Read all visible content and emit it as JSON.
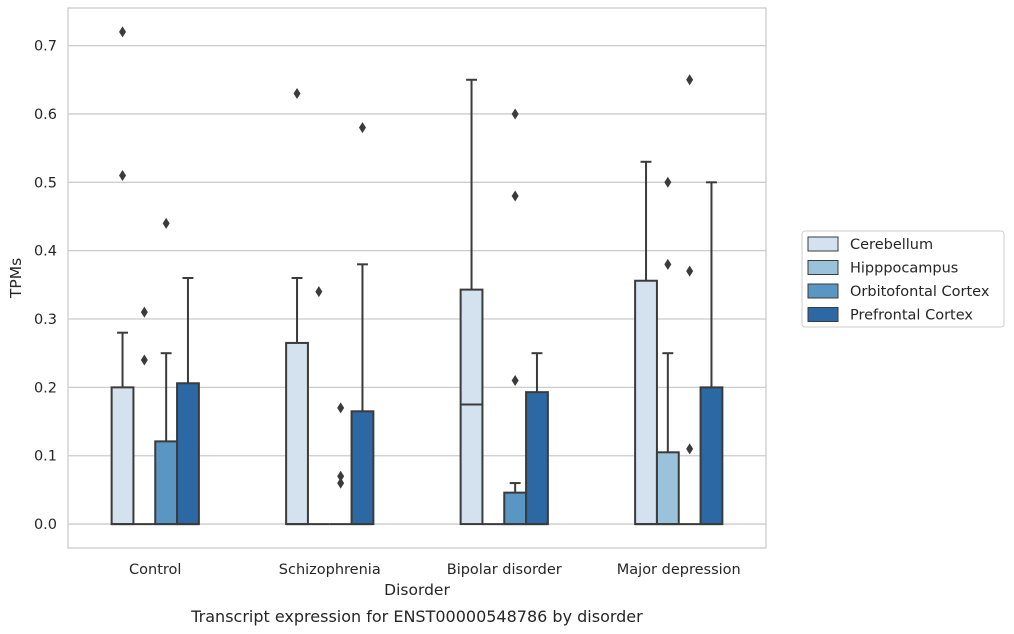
{
  "chart_data": {
    "type": "boxplot",
    "caption": "Transcript expression for ENST00000548786 by disorder",
    "xlabel": "Disorder",
    "ylabel": "TPMs",
    "ylim": [
      -0.035,
      0.755
    ],
    "yticks": [
      0.0,
      0.1,
      0.2,
      0.3,
      0.4,
      0.5,
      0.6,
      0.7
    ],
    "ytick_labels": [
      "0.0",
      "0.1",
      "0.2",
      "0.3",
      "0.4",
      "0.5",
      "0.6",
      "0.7"
    ],
    "grid": "horizontal",
    "legend_position": "right",
    "categories": [
      "Control",
      "Schizophrenia",
      "Bipolar disorder",
      "Major depression"
    ],
    "series": [
      {
        "name": "Cerebellum",
        "color": "#d4e2f0",
        "boxes": [
          {
            "whisker_low": 0.0,
            "q1": 0.0,
            "median": 0.0,
            "q3": 0.2,
            "whisker_high": 0.28,
            "outliers": [
              0.72,
              0.51
            ]
          },
          {
            "whisker_low": 0.0,
            "q1": 0.0,
            "median": 0.0,
            "q3": 0.265,
            "whisker_high": 0.36,
            "outliers": [
              0.63
            ]
          },
          {
            "whisker_low": 0.0,
            "q1": 0.0,
            "median": 0.175,
            "q3": 0.343,
            "whisker_high": 0.65,
            "outliers": []
          },
          {
            "whisker_low": 0.0,
            "q1": 0.0,
            "median": 0.0,
            "q3": 0.356,
            "whisker_high": 0.53,
            "outliers": []
          }
        ]
      },
      {
        "name": "Hipppocampus",
        "color": "#9ac2da",
        "boxes": [
          {
            "whisker_low": 0.0,
            "q1": 0.0,
            "median": 0.0,
            "q3": 0.0,
            "whisker_high": 0.0,
            "outliers": [
              0.31,
              0.24
            ]
          },
          {
            "whisker_low": 0.0,
            "q1": 0.0,
            "median": 0.0,
            "q3": 0.0,
            "whisker_high": 0.0,
            "outliers": [
              0.34
            ]
          },
          {
            "whisker_low": 0.0,
            "q1": 0.0,
            "median": 0.0,
            "q3": 0.0,
            "whisker_high": 0.0,
            "outliers": []
          },
          {
            "whisker_low": 0.0,
            "q1": 0.0,
            "median": 0.0,
            "q3": 0.105,
            "whisker_high": 0.25,
            "outliers": [
              0.5,
              0.38
            ]
          }
        ]
      },
      {
        "name": "Orbitofontal Cortex",
        "color": "#5a96c3",
        "boxes": [
          {
            "whisker_low": 0.0,
            "q1": 0.0,
            "median": 0.0,
            "q3": 0.121,
            "whisker_high": 0.25,
            "outliers": [
              0.44
            ]
          },
          {
            "whisker_low": 0.0,
            "q1": 0.0,
            "median": 0.0,
            "q3": 0.0,
            "whisker_high": 0.0,
            "outliers": [
              0.17,
              0.07,
              0.06
            ]
          },
          {
            "whisker_low": 0.0,
            "q1": 0.0,
            "median": 0.0,
            "q3": 0.046,
            "whisker_high": 0.06,
            "outliers": [
              0.6,
              0.48,
              0.21
            ]
          },
          {
            "whisker_low": 0.0,
            "q1": 0.0,
            "median": 0.0,
            "q3": 0.0,
            "whisker_high": 0.0,
            "outliers": [
              0.65,
              0.37,
              0.11
            ]
          }
        ]
      },
      {
        "name": "Prefrontal Cortex",
        "color": "#2b68a4",
        "boxes": [
          {
            "whisker_low": 0.0,
            "q1": 0.0,
            "median": 0.0,
            "q3": 0.206,
            "whisker_high": 0.36,
            "outliers": []
          },
          {
            "whisker_low": 0.0,
            "q1": 0.0,
            "median": 0.0,
            "q3": 0.165,
            "whisker_high": 0.38,
            "outliers": [
              0.58
            ]
          },
          {
            "whisker_low": 0.0,
            "q1": 0.0,
            "median": 0.0,
            "q3": 0.193,
            "whisker_high": 0.25,
            "outliers": []
          },
          {
            "whisker_low": 0.0,
            "q1": 0.0,
            "median": 0.0,
            "q3": 0.2,
            "whisker_high": 0.5,
            "outliers": []
          }
        ]
      }
    ]
  }
}
